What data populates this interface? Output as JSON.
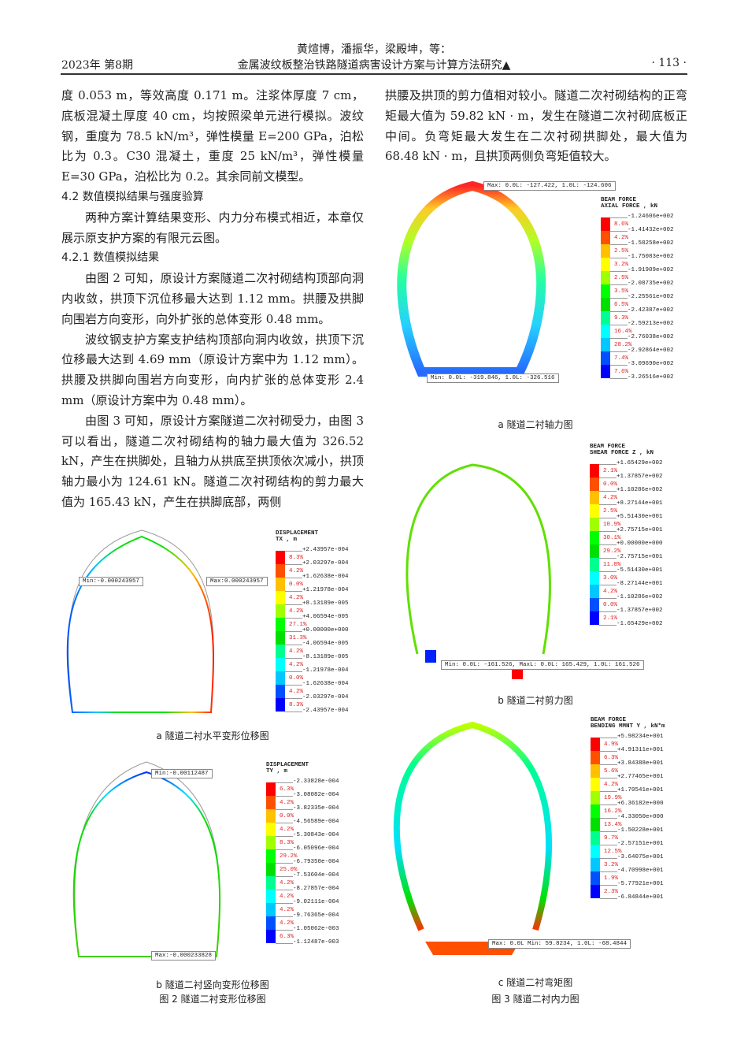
{
  "header": {
    "issue": "2023年  第8期",
    "authors": "黄煊博，潘振华，梁殿坤，等：",
    "title": "金属波纹板整治铁路隧道病害设计方案与计算方法研究▲",
    "page": "· 113 ·"
  },
  "left_column": {
    "p1": "度 0.053 m，等效高度 0.171 m。注浆体厚度 7 cm，底板混凝土厚度 40 cm，均按照梁单元进行模拟。波纹钢，重度为 78.5 kN/m³，弹性模量 E=200 GPa，泊松比为 0.3。C30 混凝土，重度 25 kN/m³，弹性模量 E=30 GPa，泊松比为 0.2。其余同前文模型。",
    "h1": "4.2  数值模拟结果与强度验算",
    "p2": "两种方案计算结果变形、内力分布模式相近，本章仅展示原支护方案的有限元云图。",
    "h2": "4.2.1  数值模拟结果",
    "p3": "由图 2 可知，原设计方案隧道二次衬砌结构顶部向洞内收敛，拱顶下沉位移最大达到 1.12 mm。拱腰及拱脚向围岩方向变形，向外扩张的总体变形 0.48 mm。",
    "p4": "波纹钢支护方案支护结构顶部向洞内收敛，拱顶下沉位移最大达到 4.69 mm（原设计方案中为 1.12 mm）。拱腰及拱脚向围岩方向变形，向内扩张的总体变形 2.4 mm（原设计方案中为 0.48 mm）。",
    "p5": "由图 3 可知，原设计方案隧道二次衬砌受力，由图 3 可以看出，隧道二次衬砌结构的轴力最大值为 326.52 kN，产生在拱脚处，且轴力从拱底至拱顶依次减小，拱顶轴力最小为 124.61 kN。隧道二次衬砌结构的剪力最大值为 165.43 kN，产生在拱脚底部，两侧"
  },
  "right_column": {
    "p1": "拱腰及拱顶的剪力值相对较小。隧道二次衬砌结构的正弯矩最大值为 59.82 kN · m，发生在隧道二次衬砌底板正中间。负弯矩最大发生在二次衬砌拱脚处，最大值为 68.48 kN · m，且拱顶两侧负弯矩值较大。"
  },
  "colors": [
    "#ff0000",
    "#ff5000",
    "#ffc000",
    "#ffff00",
    "#a0ff00",
    "#00ff00",
    "#00e000",
    "#00ff90",
    "#00ffff",
    "#00c8ff",
    "#0050ff",
    "#0000ff"
  ],
  "figures": {
    "fig2": {
      "caption": "图 2  隧道二衬变形位移图",
      "a": {
        "subcaption": "a  隧道二衬水平变形位移图",
        "min_tag": "Min:-0.000243957",
        "max_tag": "Max:0.000243957",
        "legend": {
          "title": "DISPLACEMENT\nTX , m",
          "values": [
            "+2.43957e-004",
            "+2.03297e-004",
            "+1.62638e-004",
            "+1.21978e-004",
            "+8.13189e-005",
            "+4.06594e-005",
            "+0.00000e+000",
            "-4.06594e-005",
            "-8.13189e-005",
            "-1.21978e-004",
            "-1.62638e-004",
            "-2.03297e-004",
            "-2.43957e-004"
          ],
          "percents": [
            "8.3%",
            "4.2%",
            "0.0%",
            "4.2%",
            "4.2%",
            "27.1%",
            "31.3%",
            "4.2%",
            "4.2%",
            "0.0%",
            "4.2%",
            "8.3%"
          ]
        }
      },
      "b": {
        "subcaption": "b  隧道二衬竖向变形位移图",
        "min_tag": "Min:-0.00112487",
        "max_tag": "Max:-0.000233828",
        "legend": {
          "title": "DISPLACEMENT\nTY , m",
          "values": [
            "-2.33828e-004",
            "-3.08082e-004",
            "-3.82335e-004",
            "-4.56589e-004",
            "-5.30843e-004",
            "-6.05096e-004",
            "-6.79350e-004",
            "-7.53604e-004",
            "-8.27857e-004",
            "-9.02111e-004",
            "-9.76365e-004",
            "-1.05062e-003",
            "-1.12487e-003"
          ],
          "percents": [
            "6.3%",
            "4.2%",
            "0.0%",
            "4.2%",
            "8.3%",
            "29.2%",
            "25.0%",
            "4.2%",
            "4.2%",
            "4.2%",
            "4.2%",
            "6.3%"
          ]
        }
      }
    },
    "fig3": {
      "caption": "图 3  隧道二衬内力图",
      "a": {
        "subcaption": "a  隧道二衬轴力图",
        "max_tag": "Max: 0.0L: -127.422,  1.0L: -124.606",
        "min_tag": "Min: 0.0L: -319.846,  1.0L: -326.516",
        "legend": {
          "title": "BEAM FORCE\nAXIAL FORCE , kN",
          "values": [
            "-1.24606e+002",
            "-1.41432e+002",
            "-1.58258e+002",
            "-1.75083e+002",
            "-1.91909e+002",
            "-2.08735e+002",
            "-2.25561e+002",
            "-2.42387e+002",
            "-2.59213e+002",
            "-2.76038e+002",
            "-2.92864e+002",
            "-3.09690e+002",
            "-3.26516e+002"
          ],
          "percents": [
            "8.6%",
            "4.2%",
            "2.5%",
            "3.2%",
            "2.5%",
            "3.5%",
            "6.5%",
            "9.3%",
            "16.4%",
            "28.2%",
            "7.4%",
            "7.6%"
          ]
        }
      },
      "b": {
        "subcaption": "b  隧道二衬剪力图",
        "tag": "Min: 0.0L: -161.526,  MaxL: 0.0L: 165.429,  1.0L: 161.526",
        "legend": {
          "title": "BEAM FORCE\nSHEAR FORCE Z , kN",
          "values": [
            "+1.65429e+002",
            "+1.37857e+002",
            "+1.10286e+002",
            "+8.27144e+001",
            "+5.51430e+001",
            "+2.75715e+001",
            "+0.00000e+000",
            "-2.75715e+001",
            "-5.51430e+001",
            "-8.27144e+001",
            "-1.10286e+002",
            "-1.37857e+002",
            "-1.65429e+002"
          ],
          "percents": [
            "2.1%",
            "0.0%",
            "4.2%",
            "2.5%",
            "10.9%",
            "30.1%",
            "29.2%",
            "11.8%",
            "3.0%",
            "4.2%",
            "0.0%",
            "2.1%"
          ]
        }
      },
      "c": {
        "subcaption": "c  隧道二衬弯矩图",
        "tag": "Max: 0.0L Min: 59.8234, 1.0L: -68.4844",
        "legend": {
          "title": "BEAM FORCE\nBENDING MMNT Y , kN*m",
          "values": [
            "+5.98234e+001",
            "+4.91311e+001",
            "+3.84388e+001",
            "+2.77465e+001",
            "+1.70541e+001",
            "+6.36182e+000",
            "-4.33050e+000",
            "-1.50228e+001",
            "-2.57151e+001",
            "-3.64075e+001",
            "-4.70998e+001",
            "-5.77921e+001",
            "-6.84844e+001"
          ],
          "percents": [
            "4.9%",
            "6.3%",
            "5.6%",
            "4.2%",
            "19.9%",
            "16.2%",
            "13.4%",
            "9.7%",
            "12.5%",
            "3.2%",
            "1.9%",
            "2.3%"
          ]
        }
      }
    }
  }
}
